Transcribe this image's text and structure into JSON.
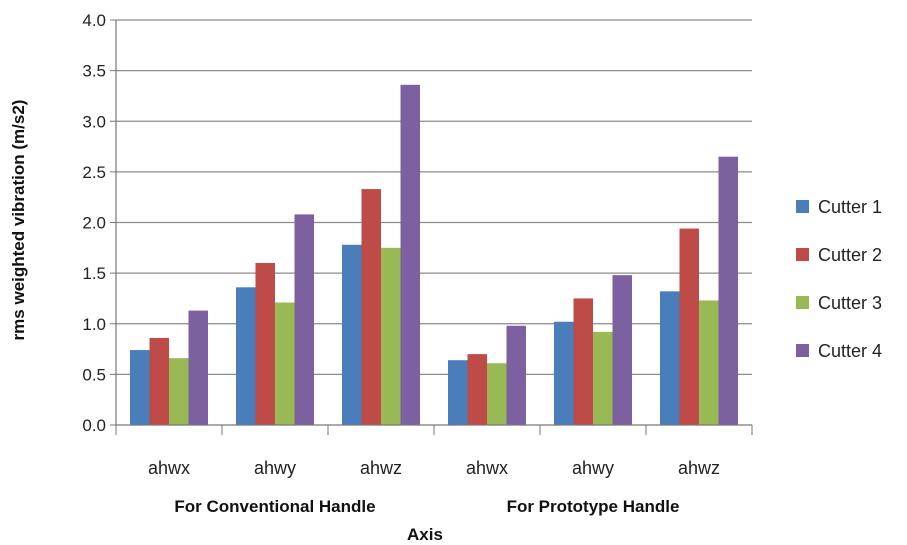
{
  "chart_data": {
    "type": "bar",
    "title": "",
    "xlabel": "Axis",
    "ylabel": "rms weighted vibration (m/s2)",
    "ylim": [
      0,
      4
    ],
    "yticks": [
      "0.0",
      "0.5",
      "1.0",
      "1.5",
      "2.0",
      "2.5",
      "3.0",
      "3.5",
      "4.0"
    ],
    "grid": true,
    "legend_position": "right",
    "categories": [
      "ahwx",
      "ahwy",
      "ahwz",
      "ahwx",
      "ahwy",
      "ahwz"
    ],
    "groups": [
      {
        "label": "For Conventional Handle",
        "span": [
          0,
          2
        ]
      },
      {
        "label": "For Prototype Handle",
        "span": [
          3,
          5
        ]
      }
    ],
    "series": [
      {
        "name": "Cutter 1",
        "color": "#4a7ebb",
        "values": [
          0.74,
          1.36,
          1.78,
          0.64,
          1.02,
          1.32
        ]
      },
      {
        "name": "Cutter 2",
        "color": "#be4b48",
        "values": [
          0.86,
          1.6,
          2.33,
          0.7,
          1.25,
          1.94
        ]
      },
      {
        "name": "Cutter 3",
        "color": "#98b954",
        "values": [
          0.66,
          1.21,
          1.75,
          0.61,
          0.92,
          1.23
        ]
      },
      {
        "name": "Cutter 4",
        "color": "#7d60a0",
        "values": [
          1.13,
          2.08,
          3.36,
          0.98,
          1.48,
          2.65
        ]
      }
    ]
  }
}
